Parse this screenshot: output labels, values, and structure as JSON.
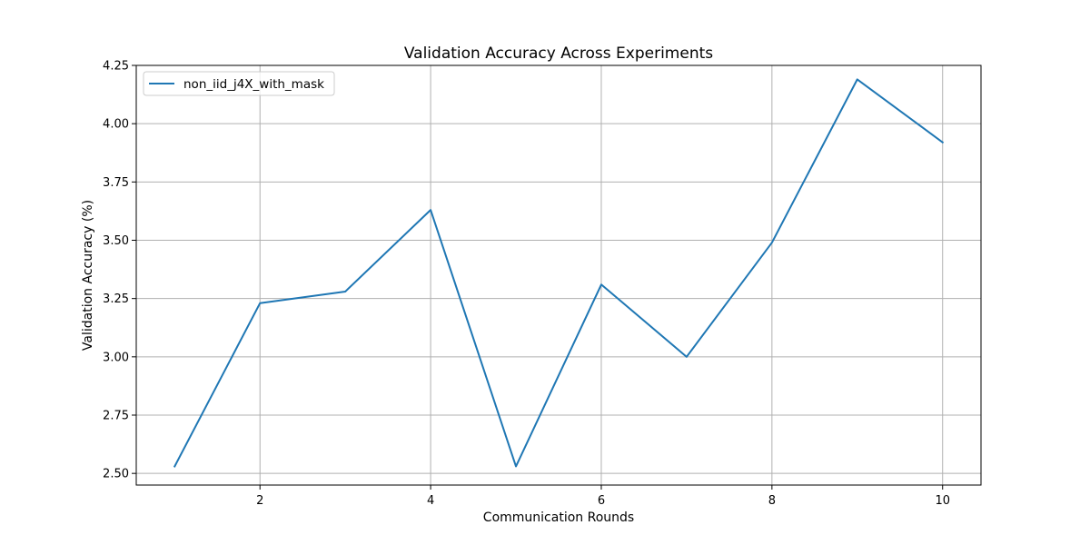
{
  "chart_data": {
    "type": "line",
    "title": "Validation Accuracy Across Experiments",
    "xlabel": "Communication Rounds",
    "ylabel": "Validation Accuracy (%)",
    "xlim": [
      0.55,
      10.45
    ],
    "ylim": [
      2.45,
      4.25
    ],
    "xticks": [
      2,
      4,
      6,
      8,
      10
    ],
    "yticks": [
      2.5,
      2.75,
      3.0,
      3.25,
      3.5,
      3.75,
      4.0,
      4.25
    ],
    "xtick_labels": [
      "2",
      "4",
      "6",
      "8",
      "10"
    ],
    "ytick_labels": [
      "2.50",
      "2.75",
      "3.00",
      "3.25",
      "3.50",
      "3.75",
      "4.00",
      "4.25"
    ],
    "grid": true,
    "legend_position": "top-left",
    "series": [
      {
        "name": "non_iid_j4X_with_mask",
        "color": "#1f77b4",
        "x": [
          1,
          2,
          3,
          4,
          5,
          6,
          7,
          8,
          9,
          10
        ],
        "y": [
          2.53,
          3.23,
          3.28,
          3.63,
          2.53,
          3.31,
          3.0,
          3.49,
          4.19,
          3.92
        ]
      }
    ]
  }
}
